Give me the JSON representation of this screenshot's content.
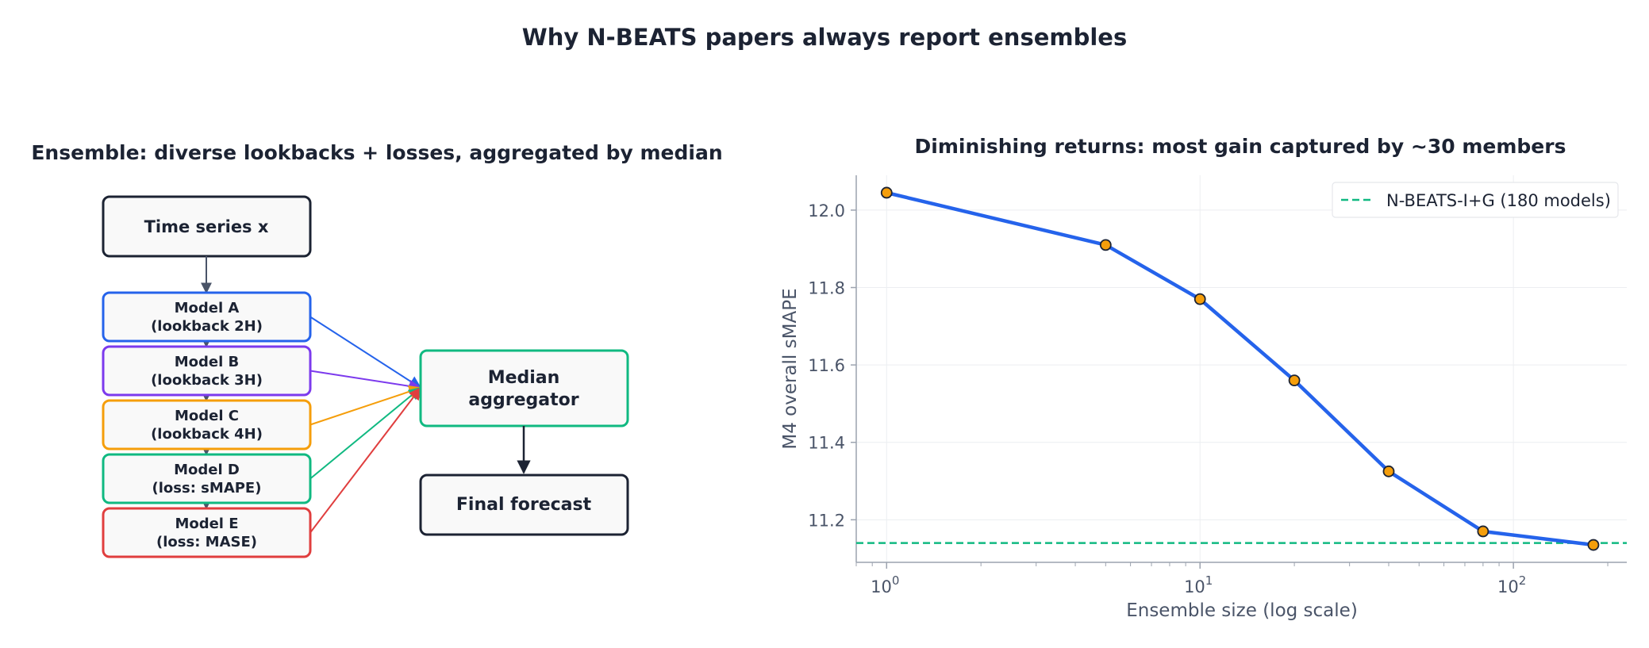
{
  "title": "Why N-BEATS papers always report ensembles",
  "diagram": {
    "title": "Ensemble: diverse lookbacks + losses, aggregated by median",
    "input": "Time series x",
    "models": [
      {
        "line1": "Model A",
        "line2": "(lookback 2H)",
        "color": "#2563eb"
      },
      {
        "line1": "Model B",
        "line2": "(lookback 3H)",
        "color": "#7c3aed"
      },
      {
        "line1": "Model C",
        "line2": "(lookback 4H)",
        "color": "#f59e0b"
      },
      {
        "line1": "Model D",
        "line2": "(loss: sMAPE)",
        "color": "#10b981"
      },
      {
        "line1": "Model E",
        "line2": "(loss: MASE)",
        "color": "#e03e3e"
      }
    ],
    "aggregator": {
      "line1": "Median",
      "line2": "aggregator",
      "color": "#10b981"
    },
    "output": "Final forecast"
  },
  "chart_data": {
    "type": "line",
    "title": "Diminishing returns: most gain captured by ~30 members",
    "xlabel": "Ensemble size (log scale)",
    "ylabel": "M4 overall sMAPE",
    "xscale": "log",
    "xlim": [
      0.8,
      230
    ],
    "ylim": [
      11.09,
      12.09
    ],
    "yticks": [
      11.2,
      11.4,
      11.6,
      11.8,
      12.0
    ],
    "ytick_labels": [
      "11.2",
      "11.4",
      "11.6",
      "11.8",
      "12.0"
    ],
    "xticks": [
      1,
      10,
      100
    ],
    "xtick_labels": [
      {
        "base": "10",
        "exp": "0"
      },
      {
        "base": "10",
        "exp": "1"
      },
      {
        "base": "10",
        "exp": "2"
      }
    ],
    "grid": true,
    "series": [
      {
        "x": [
          1,
          5,
          10,
          20,
          40,
          80,
          180
        ],
        "y": [
          12.045,
          11.91,
          11.77,
          11.56,
          11.325,
          11.17,
          11.135
        ],
        "color": "#2563eb",
        "marker_color": "#f59e0b"
      }
    ],
    "reference_line": {
      "name": "N-BEATS-I+G (180 models)",
      "y": 11.14,
      "color": "#10b981",
      "style": "dashed"
    },
    "legend_position": "top-right"
  }
}
